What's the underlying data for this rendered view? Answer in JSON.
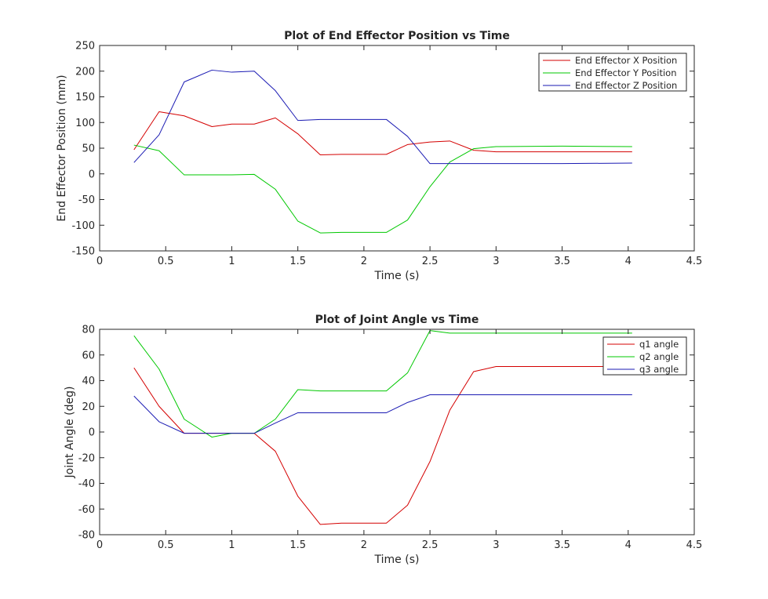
{
  "chart_data": [
    {
      "type": "line",
      "title": "Plot of End Effector Position vs Time",
      "xlabel": "Time (s)",
      "ylabel": "End Effector Position (mm)",
      "xlim": [
        0,
        4.5
      ],
      "ylim": [
        -150,
        250
      ],
      "xticks": [
        "0",
        "0.5",
        "1",
        "1.5",
        "2",
        "2.5",
        "3",
        "3.5",
        "4",
        "4.5"
      ],
      "yticks": [
        "-150",
        "-100",
        "-50",
        "0",
        "50",
        "100",
        "150",
        "200",
        "250"
      ],
      "legend_position": "top-right",
      "grid": false,
      "series": [
        {
          "name": "End Effector X Position",
          "color": "#d40000",
          "x": [
            0.26,
            0.45,
            0.64,
            0.85,
            1.0,
            1.17,
            1.33,
            1.5,
            1.67,
            1.83,
            2.0,
            2.17,
            2.33,
            2.5,
            2.65,
            2.83,
            3.0,
            3.5,
            4.03
          ],
          "y": [
            47,
            121,
            113,
            92,
            97,
            97,
            109,
            78,
            37,
            38,
            38,
            38,
            57,
            62,
            64,
            46,
            43,
            43,
            43
          ]
        },
        {
          "name": "End Effector Y Position",
          "color": "#00c800",
          "x": [
            0.26,
            0.45,
            0.64,
            0.85,
            1.0,
            1.17,
            1.33,
            1.5,
            1.67,
            1.83,
            2.0,
            2.17,
            2.33,
            2.5,
            2.65,
            2.83,
            3.0,
            3.5,
            4.03
          ],
          "y": [
            56,
            45,
            -2,
            -2,
            -2,
            -1,
            -30,
            -92,
            -115,
            -114,
            -114,
            -114,
            -90,
            -25,
            23,
            49,
            53,
            54,
            53
          ]
        },
        {
          "name": "End Effector Z Position",
          "color": "#1a1ab3",
          "x": [
            0.26,
            0.45,
            0.64,
            0.85,
            1.0,
            1.17,
            1.33,
            1.5,
            1.67,
            1.83,
            2.0,
            2.17,
            2.33,
            2.5,
            2.65,
            2.83,
            3.0,
            3.5,
            4.03
          ],
          "y": [
            22,
            76,
            179,
            202,
            198,
            200,
            162,
            104,
            106,
            106,
            106,
            106,
            73,
            20,
            20,
            20,
            20,
            20,
            21
          ]
        }
      ]
    },
    {
      "type": "line",
      "title": "Plot of Joint Angle vs Time",
      "xlabel": "Time (s)",
      "ylabel": "Joint Angle (deg)",
      "xlim": [
        0,
        4.5
      ],
      "ylim": [
        -80,
        80
      ],
      "xticks": [
        "0",
        "0.5",
        "1",
        "1.5",
        "2",
        "2.5",
        "3",
        "3.5",
        "4",
        "4.5"
      ],
      "yticks": [
        "-80",
        "-60",
        "-40",
        "-20",
        "0",
        "20",
        "40",
        "60",
        "80"
      ],
      "legend_position": "top-right",
      "grid": false,
      "series": [
        {
          "name": "q1 angle",
          "color": "#d40000",
          "x": [
            0.26,
            0.45,
            0.64,
            0.85,
            1.0,
            1.17,
            1.33,
            1.5,
            1.67,
            1.83,
            2.0,
            2.17,
            2.33,
            2.5,
            2.65,
            2.83,
            3.0,
            3.5,
            4.03
          ],
          "y": [
            50,
            20,
            -1,
            -1,
            -1,
            -1,
            -15,
            -50,
            -72,
            -71,
            -71,
            -71,
            -57,
            -23,
            17,
            47,
            51,
            51,
            51
          ]
        },
        {
          "name": "q2 angle",
          "color": "#00c800",
          "x": [
            0.26,
            0.45,
            0.64,
            0.85,
            1.0,
            1.17,
            1.33,
            1.5,
            1.67,
            1.83,
            2.0,
            2.17,
            2.33,
            2.5,
            2.65,
            2.83,
            3.0,
            3.5,
            4.03
          ],
          "y": [
            75,
            49,
            10,
            -4,
            -1,
            -1,
            10,
            33,
            32,
            32,
            32,
            32,
            46,
            79,
            77,
            77,
            77,
            77,
            77
          ]
        },
        {
          "name": "q3 angle",
          "color": "#1a1ab3",
          "x": [
            0.26,
            0.45,
            0.64,
            0.85,
            1.0,
            1.17,
            1.33,
            1.5,
            1.67,
            1.83,
            2.0,
            2.17,
            2.33,
            2.5,
            2.65,
            2.83,
            3.0,
            3.5,
            4.03
          ],
          "y": [
            28,
            8,
            -1,
            -1,
            -1,
            -1,
            7,
            15,
            15,
            15,
            15,
            15,
            23,
            29,
            29,
            29,
            29,
            29,
            29
          ]
        }
      ]
    }
  ]
}
